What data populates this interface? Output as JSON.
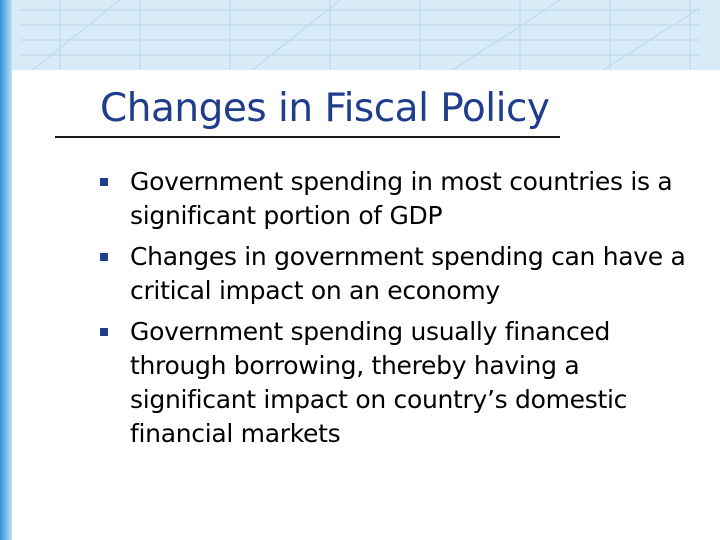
{
  "title": "Changes in Fiscal Policy",
  "bullets": [
    "Government spending in most countries is a significant portion of GDP",
    "Changes in government spending can have a critical impact on an economy",
    "Government spending usually financed through borrowing, thereby having a significant impact on country’s domestic financial markets"
  ]
}
